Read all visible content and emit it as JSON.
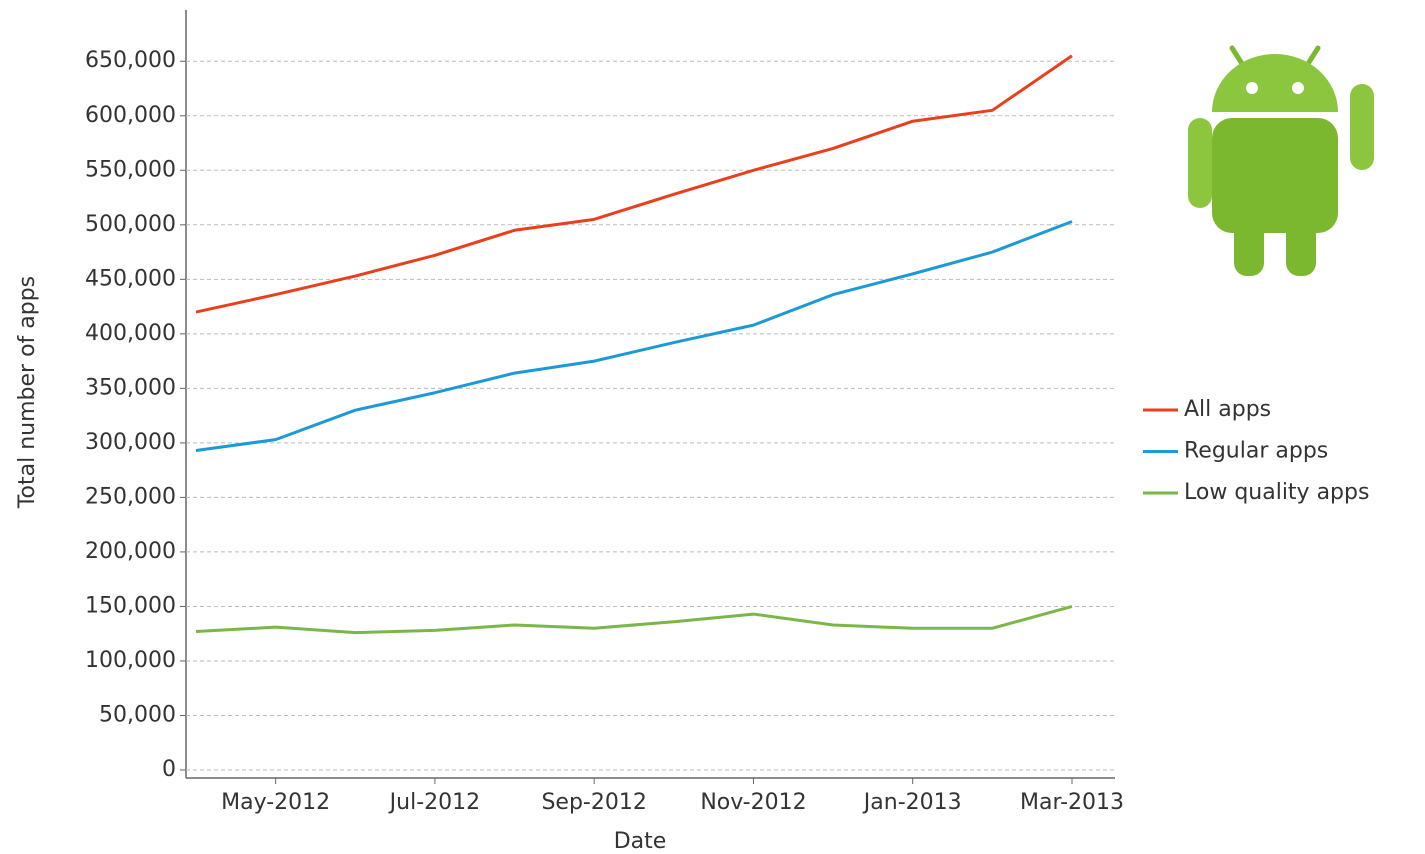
{
  "chart_data": {
    "type": "line",
    "xlabel": "Date",
    "ylabel": "Total number of apps",
    "x": [
      "2012-04",
      "2012-05",
      "2012-06",
      "2012-07",
      "2012-08",
      "2012-09",
      "2012-10",
      "2012-11",
      "2012-12",
      "2013-01",
      "2013-02",
      "2013-03"
    ],
    "series": [
      {
        "name": "All apps",
        "color": "#e8401c",
        "values": [
          420000,
          436000,
          453000,
          472000,
          495000,
          505000,
          528000,
          550000,
          570000,
          595000,
          605000,
          655000
        ]
      },
      {
        "name": "Regular apps",
        "color": "#1b9ad6",
        "values": [
          293000,
          303000,
          330000,
          346000,
          364000,
          375000,
          392000,
          408000,
          436000,
          455000,
          475000,
          503000
        ]
      },
      {
        "name": "Low quality apps",
        "color": "#7ab648",
        "values": [
          127000,
          131000,
          126000,
          128000,
          133000,
          130000,
          136000,
          143000,
          133000,
          130000,
          130000,
          150000
        ]
      }
    ],
    "xlim": [
      "2012-04",
      "2013-03"
    ],
    "xticks": [
      {
        "value": "2012-05",
        "label": "May-2012"
      },
      {
        "value": "2012-07",
        "label": "Jul-2012"
      },
      {
        "value": "2012-09",
        "label": "Sep-2012"
      },
      {
        "value": "2012-11",
        "label": "Nov-2012"
      },
      {
        "value": "2013-01",
        "label": "Jan-2013"
      },
      {
        "value": "2013-03",
        "label": "Mar-2013"
      }
    ],
    "ylim": [
      0,
      697000
    ],
    "yticks": [
      0,
      {
        "value": 50000,
        "label": "50,000"
      },
      {
        "value": 100000,
        "label": "100,000"
      },
      {
        "value": 150000,
        "label": "150,000"
      },
      {
        "value": 200000,
        "label": "200,000"
      },
      {
        "value": 250000,
        "label": "250,000"
      },
      {
        "value": 300000,
        "label": "300,000"
      },
      {
        "value": 350000,
        "label": "350,000"
      },
      {
        "value": 400000,
        "label": "400,000"
      },
      {
        "value": 450000,
        "label": "450,000"
      },
      {
        "value": 500000,
        "label": "500,000"
      },
      {
        "value": 550000,
        "label": "550,000"
      },
      {
        "value": 600000,
        "label": "600,000"
      },
      {
        "value": 650000,
        "label": "650,000"
      }
    ],
    "grid": true,
    "legend": "right"
  }
}
